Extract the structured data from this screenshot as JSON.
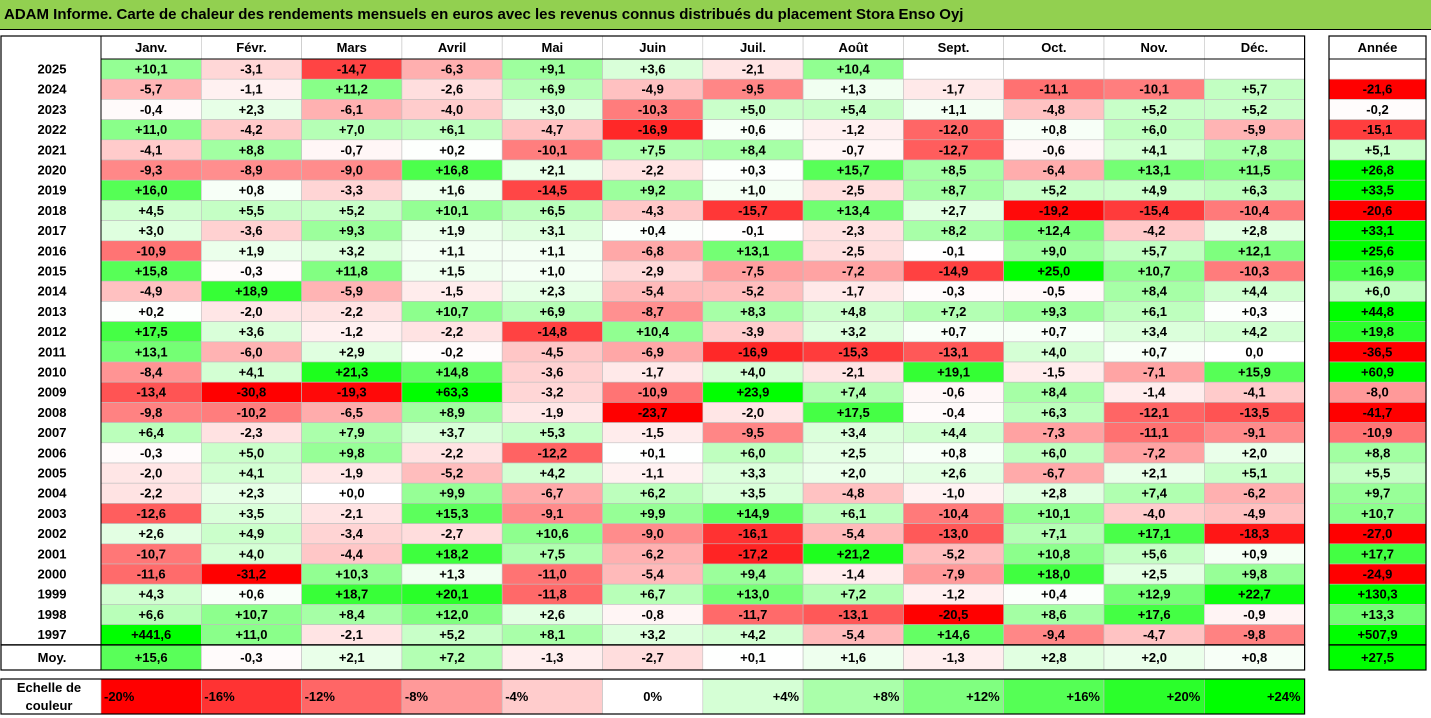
{
  "title": "ADAM Informe. Carte de chaleur des rendements mensuels en euros avec les revenus connus distribués du placement Stora Enso Oyj",
  "chart_data": {
    "type": "heatmap",
    "columns": [
      "Janv.",
      "Févr.",
      "Mars",
      "Avril",
      "Mai",
      "Juin",
      "Juil.",
      "Août",
      "Sept.",
      "Oct.",
      "Nov.",
      "Déc."
    ],
    "year_column_label": "Année",
    "rows": [
      {
        "year": "2025",
        "values": [
          "+10,1",
          "-3,1",
          "-14,7",
          "-6,3",
          "+9,1",
          "+3,6",
          "-2,1",
          "+10,4",
          "",
          "",
          "",
          ""
        ],
        "annual": ""
      },
      {
        "year": "2024",
        "values": [
          "-5,7",
          "-1,1",
          "+11,2",
          "-2,6",
          "+6,9",
          "-4,9",
          "-9,5",
          "+1,3",
          "-1,7",
          "-11,1",
          "-10,1",
          "+5,7"
        ],
        "annual": "-21,6"
      },
      {
        "year": "2023",
        "values": [
          "-0,4",
          "+2,3",
          "-6,1",
          "-4,0",
          "+3,0",
          "-10,3",
          "+5,0",
          "+5,4",
          "+1,1",
          "-4,8",
          "+5,2",
          "+5,2"
        ],
        "annual": "-0,2"
      },
      {
        "year": "2022",
        "values": [
          "+11,0",
          "-4,2",
          "+7,0",
          "+6,1",
          "-4,7",
          "-16,9",
          "+0,6",
          "-1,2",
          "-12,0",
          "+0,8",
          "+6,0",
          "-5,9"
        ],
        "annual": "-15,1"
      },
      {
        "year": "2021",
        "values": [
          "-4,1",
          "+8,8",
          "-0,7",
          "+0,2",
          "-10,1",
          "+7,5",
          "+8,4",
          "-0,7",
          "-12,7",
          "-0,6",
          "+4,1",
          "+7,8"
        ],
        "annual": "+5,1"
      },
      {
        "year": "2020",
        "values": [
          "-9,3",
          "-8,9",
          "-9,0",
          "+16,8",
          "+2,1",
          "-2,2",
          "+0,3",
          "+15,7",
          "+8,5",
          "-6,4",
          "+13,1",
          "+11,5"
        ],
        "annual": "+26,8"
      },
      {
        "year": "2019",
        "values": [
          "+16,0",
          "+0,8",
          "-3,3",
          "+1,6",
          "-14,5",
          "+9,2",
          "+1,0",
          "-2,5",
          "+8,7",
          "+5,2",
          "+4,9",
          "+6,3"
        ],
        "annual": "+33,5"
      },
      {
        "year": "2018",
        "values": [
          "+4,5",
          "+5,5",
          "+5,2",
          "+10,1",
          "+6,5",
          "-4,3",
          "-15,7",
          "+13,4",
          "+2,7",
          "-19,2",
          "-15,4",
          "-10,4"
        ],
        "annual": "-20,6"
      },
      {
        "year": "2017",
        "values": [
          "+3,0",
          "-3,6",
          "+9,3",
          "+1,9",
          "+3,1",
          "+0,4",
          "-0,1",
          "-2,3",
          "+8,2",
          "+12,4",
          "-4,2",
          "+2,8"
        ],
        "annual": "+33,1"
      },
      {
        "year": "2016",
        "values": [
          "-10,9",
          "+1,9",
          "+3,2",
          "+1,1",
          "+1,1",
          "-6,8",
          "+13,1",
          "-2,5",
          "-0,1",
          "+9,0",
          "+5,7",
          "+12,1"
        ],
        "annual": "+25,6"
      },
      {
        "year": "2015",
        "values": [
          "+15,8",
          "-0,3",
          "+11,8",
          "+1,5",
          "+1,0",
          "-2,9",
          "-7,5",
          "-7,2",
          "-14,9",
          "+25,0",
          "+10,7",
          "-10,3"
        ],
        "annual": "+16,9"
      },
      {
        "year": "2014",
        "values": [
          "-4,9",
          "+18,9",
          "-5,9",
          "-1,5",
          "+2,3",
          "-5,4",
          "-5,2",
          "-1,7",
          "-0,3",
          "-0,5",
          "+8,4",
          "+4,4"
        ],
        "annual": "+6,0"
      },
      {
        "year": "2013",
        "values": [
          "+0,2",
          "-2,0",
          "-2,2",
          "+10,7",
          "+6,9",
          "-8,7",
          "+8,3",
          "+4,8",
          "+7,2",
          "+9,3",
          "+6,1",
          "+0,3"
        ],
        "annual": "+44,8"
      },
      {
        "year": "2012",
        "values": [
          "+17,5",
          "+3,6",
          "-1,2",
          "-2,2",
          "-14,8",
          "+10,4",
          "-3,9",
          "+3,2",
          "+0,7",
          "+0,7",
          "+3,4",
          "+4,2"
        ],
        "annual": "+19,8"
      },
      {
        "year": "2011",
        "values": [
          "+13,1",
          "-6,0",
          "+2,9",
          "-0,2",
          "-4,5",
          "-6,9",
          "-16,9",
          "-15,3",
          "-13,1",
          "+4,0",
          "+0,7",
          "0,0"
        ],
        "annual": "-36,5"
      },
      {
        "year": "2010",
        "values": [
          "-8,4",
          "+4,1",
          "+21,3",
          "+14,8",
          "-3,6",
          "-1,7",
          "+4,0",
          "-2,1",
          "+19,1",
          "-1,5",
          "-7,1",
          "+15,9"
        ],
        "annual": "+60,9"
      },
      {
        "year": "2009",
        "values": [
          "-13,4",
          "-30,8",
          "-19,3",
          "+63,3",
          "-3,2",
          "-10,9",
          "+23,9",
          "+7,4",
          "-0,6",
          "+8,4",
          "-1,4",
          "-4,1"
        ],
        "annual": "-8,0"
      },
      {
        "year": "2008",
        "values": [
          "-9,8",
          "-10,2",
          "-6,5",
          "+8,9",
          "-1,9",
          "-23,7",
          "-2,0",
          "+17,5",
          "-0,4",
          "+6,3",
          "-12,1",
          "-13,5"
        ],
        "annual": "-41,7"
      },
      {
        "year": "2007",
        "values": [
          "+6,4",
          "-2,3",
          "+7,9",
          "+3,7",
          "+5,3",
          "-1,5",
          "-9,5",
          "+3,4",
          "+4,4",
          "-7,3",
          "-11,1",
          "-9,1"
        ],
        "annual": "-10,9"
      },
      {
        "year": "2006",
        "values": [
          "-0,3",
          "+5,0",
          "+9,8",
          "-2,2",
          "-12,2",
          "+0,1",
          "+6,0",
          "+2,5",
          "+0,8",
          "+6,0",
          "-7,2",
          "+2,0"
        ],
        "annual": "+8,8"
      },
      {
        "year": "2005",
        "values": [
          "-2,0",
          "+4,1",
          "-1,9",
          "-5,2",
          "+4,2",
          "-1,1",
          "+3,3",
          "+2,0",
          "+2,6",
          "-6,7",
          "+2,1",
          "+5,1"
        ],
        "annual": "+5,5"
      },
      {
        "year": "2004",
        "values": [
          "-2,2",
          "+2,3",
          "+0,0",
          "+9,9",
          "-6,7",
          "+6,2",
          "+3,5",
          "-4,8",
          "-1,0",
          "+2,8",
          "+7,4",
          "-6,2"
        ],
        "annual": "+9,7"
      },
      {
        "year": "2003",
        "values": [
          "-12,6",
          "+3,5",
          "-2,1",
          "+15,3",
          "-9,1",
          "+9,9",
          "+14,9",
          "+6,1",
          "-10,4",
          "+10,1",
          "-4,0",
          "-4,9"
        ],
        "annual": "+10,7"
      },
      {
        "year": "2002",
        "values": [
          "+2,6",
          "+4,9",
          "-3,4",
          "-2,7",
          "+10,6",
          "-9,0",
          "-16,1",
          "-5,4",
          "-13,0",
          "+7,1",
          "+17,1",
          "-18,3"
        ],
        "annual": "-27,0"
      },
      {
        "year": "2001",
        "values": [
          "-10,7",
          "+4,0",
          "-4,4",
          "+18,2",
          "+7,5",
          "-6,2",
          "-17,2",
          "+21,2",
          "-5,2",
          "+10,8",
          "+5,6",
          "+0,9"
        ],
        "annual": "+17,7"
      },
      {
        "year": "2000",
        "values": [
          "-11,6",
          "-31,2",
          "+10,3",
          "+1,3",
          "-11,0",
          "-5,4",
          "+9,4",
          "-1,4",
          "-7,9",
          "+18,0",
          "+2,5",
          "+9,8"
        ],
        "annual": "-24,9"
      },
      {
        "year": "1999",
        "values": [
          "+4,3",
          "+0,6",
          "+18,7",
          "+20,1",
          "-11,8",
          "+6,7",
          "+13,0",
          "+7,2",
          "-1,2",
          "+0,4",
          "+12,9",
          "+22,7"
        ],
        "annual": "+130,3"
      },
      {
        "year": "1998",
        "values": [
          "+6,6",
          "+10,7",
          "+8,4",
          "+12,0",
          "+2,6",
          "-0,8",
          "-11,7",
          "-13,1",
          "-20,5",
          "+8,6",
          "+17,6",
          "-0,9"
        ],
        "annual": "+13,3"
      },
      {
        "year": "1997",
        "values": [
          "+441,6",
          "+11,0",
          "-2,1",
          "+5,2",
          "+8,1",
          "+3,2",
          "+4,2",
          "-5,4",
          "+14,6",
          "-9,4",
          "-4,7",
          "-9,8"
        ],
        "annual": "+507,9"
      }
    ],
    "average": {
      "label": "Moy.",
      "values": [
        "+15,6",
        "-0,3",
        "+2,1",
        "+7,2",
        "-1,3",
        "-2,7",
        "+0,1",
        "+1,6",
        "-1,3",
        "+2,8",
        "+2,0",
        "+0,8"
      ],
      "annual": "+27,5"
    },
    "scale": {
      "label": "Echelle de couleur",
      "items": [
        "-20%",
        "-16%",
        "-12%",
        "-8%",
        "-4%",
        "0%",
        "+4%",
        "+8%",
        "+12%",
        "+16%",
        "+20%",
        "+24%"
      ],
      "stops": [
        -20,
        -16,
        -12,
        -8,
        -4,
        0,
        4,
        8,
        12,
        16,
        20,
        24
      ]
    },
    "colors": {
      "negative_max": "#ff0000",
      "neutral": "#ffffff",
      "positive_max": "#00ff00",
      "title_bg": "#92d050",
      "border": "#000000"
    }
  }
}
